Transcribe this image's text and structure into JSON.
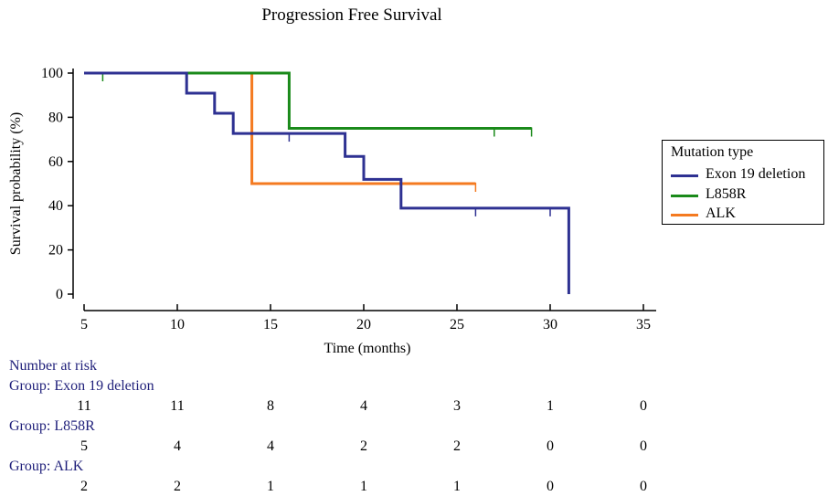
{
  "chart_data": {
    "type": "line",
    "subtype": "kaplan-meier step",
    "title": "Progression Free Survival",
    "xlabel": "Time (months)",
    "ylabel": "Survival probability (%)",
    "xlim": [
      5,
      35
    ],
    "ylim": [
      0,
      100
    ],
    "xticks": [
      5,
      10,
      15,
      20,
      25,
      30,
      35
    ],
    "yticks": [
      0,
      20,
      40,
      60,
      80,
      100
    ],
    "grid": false,
    "legend_position": "right",
    "legend_title": "Mutation type",
    "series": [
      {
        "name": "Exon 19 deletion",
        "color": "#2e3192",
        "steps": [
          [
            5,
            100
          ],
          [
            10.5,
            100
          ],
          [
            10.5,
            90.9
          ],
          [
            12,
            90.9
          ],
          [
            12,
            81.8
          ],
          [
            13,
            81.8
          ],
          [
            13,
            72.7
          ],
          [
            19,
            72.7
          ],
          [
            19,
            62.3
          ],
          [
            20,
            62.3
          ],
          [
            20,
            51.9
          ],
          [
            22,
            51.9
          ],
          [
            22,
            38.9
          ],
          [
            31,
            38.9
          ],
          [
            31,
            0
          ]
        ],
        "censored": [
          [
            16,
            72.7
          ],
          [
            26,
            38.9
          ],
          [
            30,
            38.9
          ]
        ]
      },
      {
        "name": "L858R",
        "color": "#1a8a1a",
        "steps": [
          [
            5,
            100
          ],
          [
            16,
            100
          ],
          [
            16,
            75
          ],
          [
            29,
            75
          ]
        ],
        "censored": [
          [
            6,
            100
          ],
          [
            27,
            75
          ],
          [
            29,
            75
          ]
        ]
      },
      {
        "name": "ALK",
        "color": "#f47a20",
        "steps": [
          [
            5,
            100
          ],
          [
            14,
            100
          ],
          [
            14,
            50
          ],
          [
            26,
            50
          ]
        ],
        "censored": [
          [
            26,
            50
          ]
        ]
      }
    ],
    "risk_table": {
      "header": "Number at risk",
      "times": [
        5,
        10,
        15,
        20,
        25,
        30,
        35
      ],
      "groups": [
        {
          "label": "Group: Exon 19 deletion",
          "counts": [
            "11",
            "11",
            "8",
            "4",
            "3",
            "1",
            "0"
          ]
        },
        {
          "label": "Group: L858R",
          "counts": [
            "5",
            "4",
            "4",
            "2",
            "2",
            "0",
            "0"
          ]
        },
        {
          "label": "Group: ALK",
          "counts": [
            "2",
            "2",
            "1",
            "1",
            "1",
            "0",
            "0"
          ]
        }
      ]
    }
  }
}
